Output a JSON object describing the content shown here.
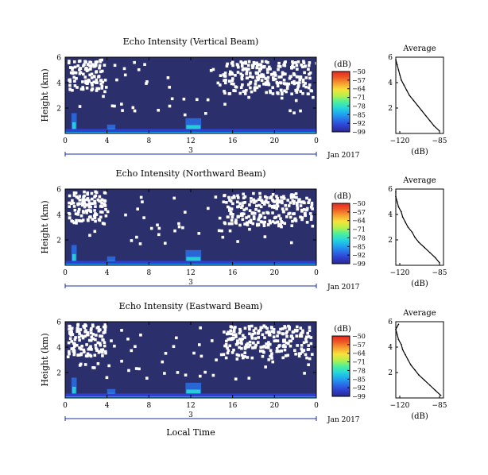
{
  "colors": {
    "background_field": "#2b2f6b",
    "gap": "#ffffff",
    "colormap": [
      "#2a2a8c",
      "#2f3fd0",
      "#2a6fe8",
      "#1ea8f0",
      "#25d8d8",
      "#4ef09a",
      "#b6f04a",
      "#f7e23a",
      "#f7a030",
      "#ee5a26",
      "#e8261e"
    ]
  },
  "shared": {
    "x_ticks": [
      "0",
      "4",
      "8",
      "12",
      "16",
      "20",
      "0"
    ],
    "y_ticks": [
      "6",
      "4",
      "2"
    ],
    "ylabel": "Height (km)",
    "date_day": "3",
    "date_label": "Jan 2017",
    "colorbar_unit": "(dB)",
    "colorbar_ticks": [
      "−50",
      "−57",
      "−64",
      "−71",
      "−78",
      "−85",
      "−92",
      "−99"
    ],
    "avg_title": "Average",
    "avg_xticks": [
      "−120",
      "−85"
    ],
    "avg_yticks": [
      "6",
      "4",
      "2"
    ],
    "avg_xlabel": "(dB)",
    "xlabel": "Local Time"
  },
  "chart_data": [
    {
      "type": "heatmap",
      "title": "Echo Intensity (Vertical Beam)",
      "x_range_hours": [
        0,
        24
      ],
      "y_range_km": [
        0,
        6
      ],
      "color_range_db": [
        -99,
        -50
      ],
      "average_profile": {
        "title": "Average",
        "xlim": [
          -120,
          -85
        ],
        "height_km": [
          0.2,
          0.6,
          1.0,
          1.4,
          1.8,
          2.2,
          2.6,
          3.0,
          3.4,
          3.8,
          4.2,
          4.6,
          5.0,
          5.4,
          5.8
        ],
        "db": [
          -88,
          -92,
          -95,
          -98,
          -101,
          -104,
          -107,
          -110,
          -112,
          -114,
          -116,
          -117,
          -118,
          -119,
          -120
        ]
      }
    },
    {
      "type": "heatmap",
      "title": "Echo Intensity (Northward Beam)",
      "x_range_hours": [
        0,
        24
      ],
      "y_range_km": [
        0,
        6
      ],
      "color_range_db": [
        -99,
        -50
      ],
      "average_profile": {
        "title": "Average",
        "xlim": [
          -120,
          -85
        ],
        "height_km": [
          0.2,
          0.6,
          1.0,
          1.4,
          1.8,
          2.2,
          2.6,
          3.0,
          3.4,
          3.8,
          4.2,
          4.6,
          5.0,
          5.4,
          5.8
        ],
        "db": [
          -88,
          -91,
          -95,
          -99,
          -103,
          -106,
          -108,
          -111,
          -113,
          -115,
          -116,
          -118,
          -119,
          -120,
          -120
        ]
      }
    },
    {
      "type": "heatmap",
      "title": "Echo Intensity (Eastward Beam)",
      "x_range_hours": [
        0,
        24
      ],
      "y_range_km": [
        0,
        6
      ],
      "color_range_db": [
        -99,
        -50
      ],
      "average_profile": {
        "title": "Average",
        "xlim": [
          -120,
          -85
        ],
        "height_km": [
          0.2,
          0.6,
          1.0,
          1.4,
          1.8,
          2.2,
          2.6,
          3.0,
          3.4,
          3.8,
          4.2,
          4.6,
          5.0,
          5.4,
          5.8
        ],
        "db": [
          -87,
          -91,
          -95,
          -99,
          -103,
          -106,
          -109,
          -111,
          -113,
          -115,
          -116,
          -118,
          -119,
          -120,
          -118
        ]
      }
    }
  ]
}
